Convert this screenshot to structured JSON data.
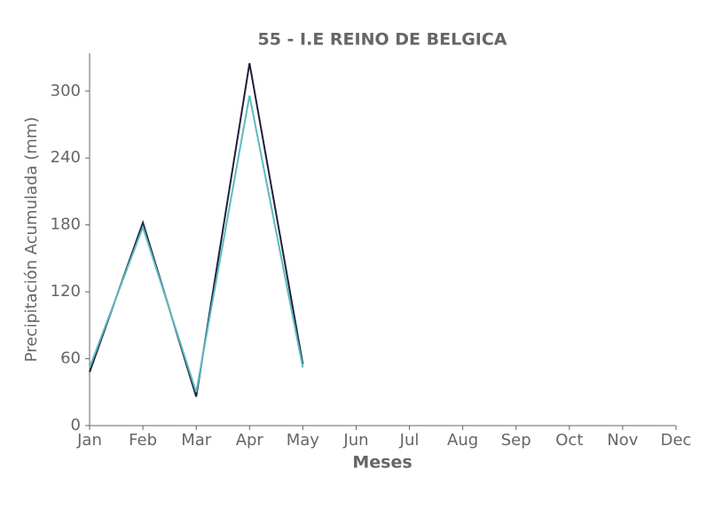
{
  "chart_data": {
    "type": "line",
    "title": "55 - I.E REINO DE BELGICA",
    "x_label": "Meses",
    "y_label": "Precipitación Acumulada (mm)",
    "categories": [
      "Jan",
      "Feb",
      "Mar",
      "Apr",
      "May",
      "Jun",
      "Jul",
      "Aug",
      "Sep",
      "Oct",
      "Nov",
      "Dec"
    ],
    "series": [
      {
        "color": "#1f1f3a",
        "values": [
          48,
          182,
          26,
          325,
          55,
          null,
          null,
          null,
          null,
          null,
          null,
          null
        ]
      },
      {
        "color": "#5bbcbf",
        "values": [
          52,
          178,
          30,
          296,
          52,
          null,
          null,
          null,
          null,
          null,
          null,
          null
        ]
      }
    ],
    "ylim": [
      0,
      334
    ],
    "yticks": [
      0,
      60,
      120,
      180,
      240,
      300
    ],
    "grid": false
  }
}
